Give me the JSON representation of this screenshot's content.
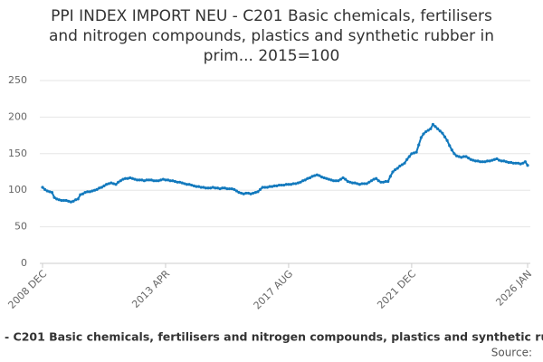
{
  "chart_data": {
    "type": "line",
    "title": [
      "PPI INDEX IMPORT NEU - C201 Basic chemicals, fertilisers",
      "and nitrogen compounds, plastics and synthetic rubber in",
      "prim... 2015=100"
    ],
    "categories": [
      "2008 DEC",
      null,
      null,
      null,
      null,
      null,
      null,
      null,
      null,
      null,
      null,
      null,
      null,
      null,
      null,
      null,
      null,
      null,
      null,
      null,
      null,
      null,
      null,
      null,
      null,
      null,
      null,
      null,
      null,
      null,
      null,
      null,
      null,
      null,
      null,
      null,
      null,
      null,
      null,
      null,
      null,
      null,
      null,
      null,
      null,
      null,
      null,
      null,
      null,
      null,
      null,
      null,
      "2013 APR",
      null,
      null,
      null,
      null,
      null,
      null,
      null,
      null,
      null,
      null,
      null,
      null,
      null,
      null,
      null,
      null,
      null,
      null,
      null,
      null,
      null,
      null,
      null,
      null,
      null,
      null,
      null,
      null,
      null,
      null,
      null,
      null,
      null,
      null,
      null,
      null,
      null,
      null,
      null,
      null,
      null,
      null,
      null,
      null,
      null,
      null,
      null,
      null,
      null,
      null,
      null,
      "2017 AUG",
      null,
      null,
      null,
      null,
      null,
      null,
      null,
      null,
      null,
      null,
      null,
      null,
      null,
      null,
      null,
      null,
      null,
      null,
      null,
      null,
      null,
      null,
      null,
      null,
      null,
      null,
      null,
      null,
      null,
      null,
      null,
      null,
      null,
      null,
      null,
      null,
      null,
      null,
      null,
      null,
      null,
      null,
      null,
      null,
      null,
      null,
      null,
      null,
      null,
      null,
      null,
      "2021 DEC",
      null,
      null,
      null,
      null,
      null,
      null,
      null,
      null,
      null,
      null,
      null,
      null,
      null,
      null,
      null,
      null,
      null,
      null,
      null,
      null,
      null,
      null,
      null,
      null,
      null,
      null,
      null,
      null,
      null,
      null,
      null,
      null,
      null,
      null,
      null,
      null,
      null,
      null,
      null,
      null,
      null,
      null,
      null,
      null,
      null,
      null,
      null,
      null,
      "2026 JAN"
    ],
    "series": [
      {
        "name": "- C201 Basic chemicals, fertilisers and nitrogen compounds, plastics and synthetic ru",
        "color": "#1279bd",
        "values": [
          104,
          101,
          99,
          98,
          97,
          90,
          88,
          87,
          86,
          86,
          86,
          85,
          84,
          85,
          87,
          88,
          94,
          95,
          97,
          98,
          98,
          99,
          100,
          101,
          103,
          104,
          106,
          108,
          109,
          110,
          109,
          108,
          111,
          113,
          115,
          116,
          116,
          117,
          116,
          115,
          114,
          114,
          114,
          113,
          114,
          114,
          114,
          113,
          113,
          113,
          114,
          115,
          114,
          114,
          113,
          113,
          112,
          111,
          111,
          110,
          109,
          108,
          108,
          107,
          106,
          105,
          105,
          104,
          104,
          103,
          103,
          103,
          104,
          103,
          103,
          102,
          103,
          103,
          102,
          102,
          102,
          101,
          99,
          97,
          96,
          95,
          96,
          96,
          95,
          96,
          97,
          98,
          101,
          104,
          104,
          104,
          105,
          105,
          106,
          106,
          107,
          107,
          107,
          108,
          108,
          108,
          109,
          109,
          110,
          111,
          113,
          114,
          116,
          117,
          119,
          120,
          121,
          120,
          118,
          117,
          116,
          115,
          114,
          113,
          113,
          113,
          115,
          117,
          115,
          112,
          111,
          110,
          110,
          109,
          108,
          109,
          109,
          109,
          111,
          113,
          115,
          116,
          113,
          111,
          111,
          112,
          112,
          119,
          125,
          128,
          130,
          133,
          135,
          137,
          142,
          146,
          150,
          151,
          152,
          162,
          172,
          177,
          180,
          182,
          184,
          190,
          187,
          184,
          181,
          178,
          173,
          168,
          161,
          155,
          150,
          147,
          146,
          145,
          146,
          146,
          144,
          142,
          141,
          140,
          140,
          139,
          139,
          139,
          140,
          140,
          141,
          142,
          143,
          141,
          140,
          140,
          139,
          138,
          138,
          137,
          137,
          137,
          136,
          137,
          139,
          134
        ]
      }
    ],
    "ylim": [
      0,
      250
    ],
    "yticks": [
      0,
      50,
      100,
      150,
      200,
      250
    ],
    "grid": true,
    "source": "Source:"
  }
}
